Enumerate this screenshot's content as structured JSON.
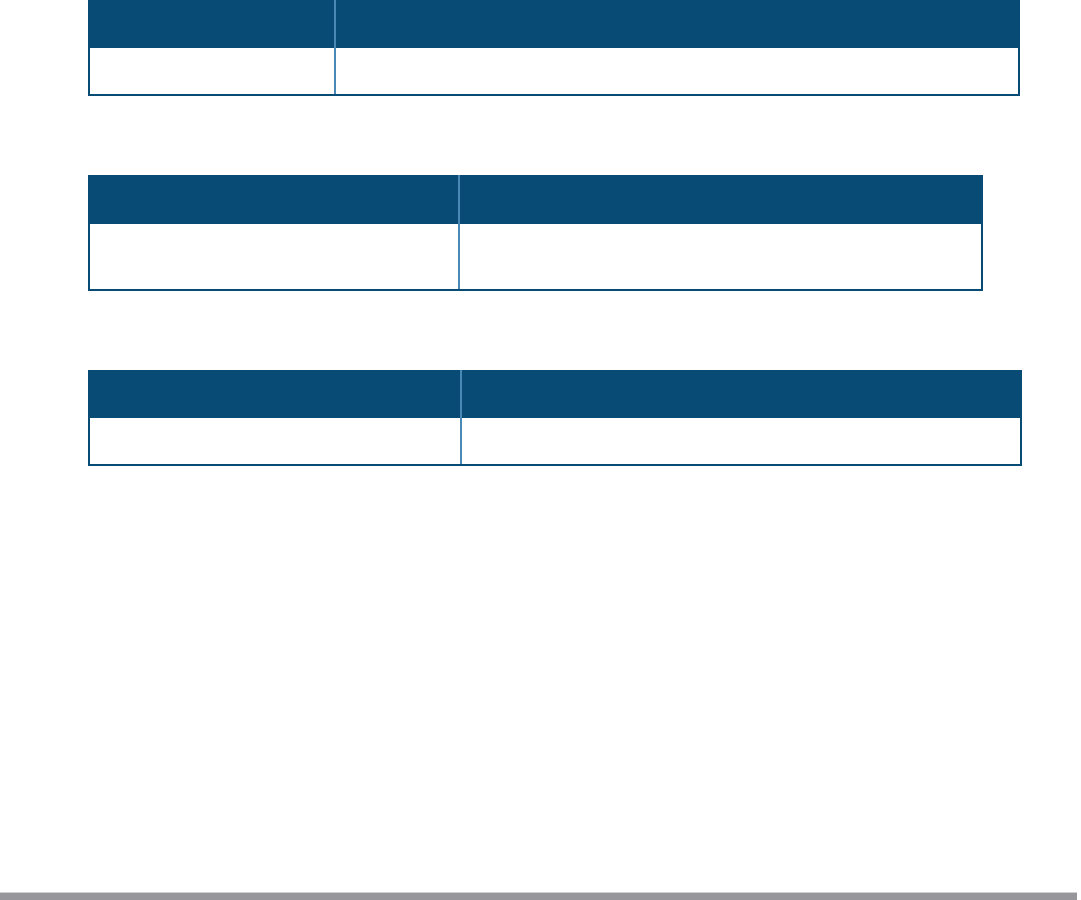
{
  "colors": {
    "header": "#084c75",
    "divider": "#4a88b5",
    "footer_bar": "#97979b"
  },
  "tables": [
    {
      "headers": [
        "",
        ""
      ],
      "rows": [
        [
          "",
          ""
        ]
      ]
    },
    {
      "headers": [
        "",
        ""
      ],
      "rows": [
        [
          "",
          ""
        ]
      ]
    },
    {
      "headers": [
        "",
        ""
      ],
      "rows": [
        [
          "",
          ""
        ]
      ]
    }
  ]
}
